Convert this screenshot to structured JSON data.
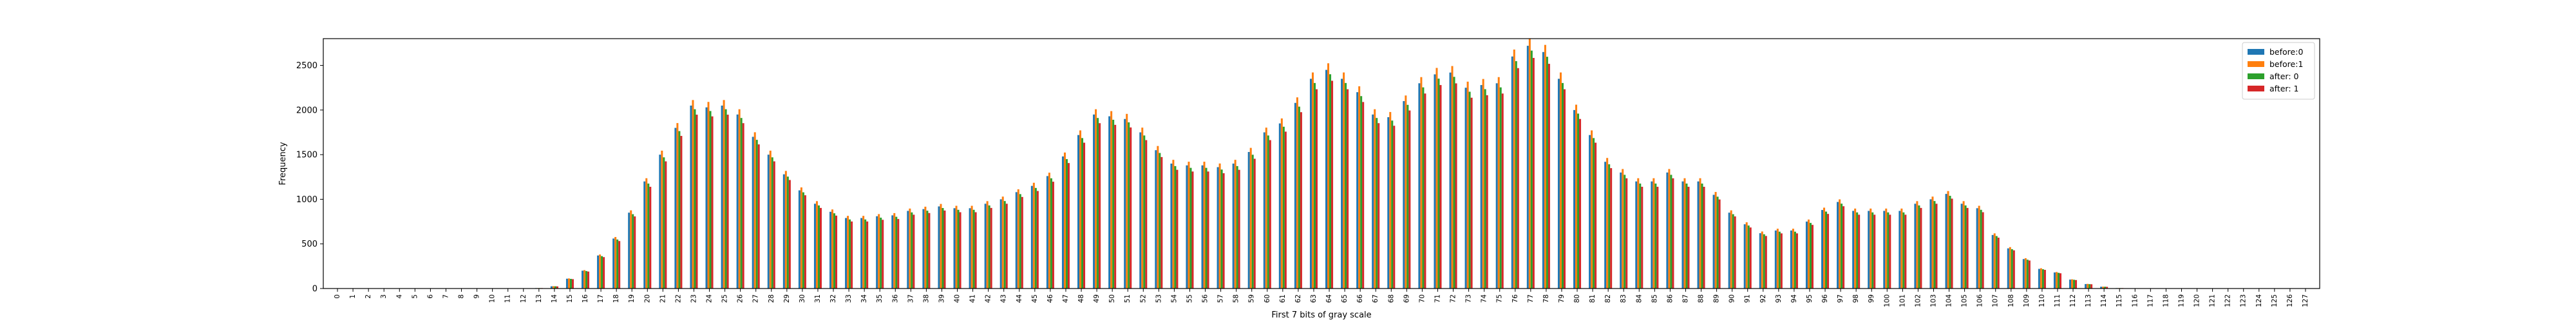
{
  "chart_data": {
    "type": "bar",
    "title": "",
    "xlabel": "First 7 bits of gray scale",
    "ylabel": "Frequency",
    "ylim": [
      0,
      2800
    ],
    "yticks": [
      0,
      500,
      1000,
      1500,
      2000,
      2500
    ],
    "grid": false,
    "legend_position": "top-right",
    "categories": [
      "0",
      "1",
      "2",
      "3",
      "4",
      "5",
      "6",
      "7",
      "8",
      "9",
      "10",
      "11",
      "12",
      "13",
      "14",
      "15",
      "16",
      "17",
      "18",
      "19",
      "20",
      "21",
      "22",
      "23",
      "24",
      "25",
      "26",
      "27",
      "28",
      "29",
      "30",
      "31",
      "32",
      "33",
      "34",
      "35",
      "36",
      "37",
      "38",
      "39",
      "40",
      "41",
      "42",
      "43",
      "44",
      "45",
      "46",
      "47",
      "48",
      "49",
      "50",
      "51",
      "52",
      "53",
      "54",
      "55",
      "56",
      "57",
      "58",
      "59",
      "60",
      "61",
      "62",
      "63",
      "64",
      "65",
      "66",
      "67",
      "68",
      "69",
      "70",
      "71",
      "72",
      "73",
      "74",
      "75",
      "76",
      "77",
      "78",
      "79",
      "80",
      "81",
      "82",
      "83",
      "84",
      "85",
      "86",
      "87",
      "88",
      "89",
      "90",
      "91",
      "92",
      "93",
      "94",
      "95",
      "96",
      "97",
      "98",
      "99",
      "100",
      "101",
      "102",
      "103",
      "104",
      "105",
      "106",
      "107",
      "108",
      "109",
      "110",
      "111",
      "112",
      "113",
      "114",
      "115",
      "116",
      "117",
      "118",
      "119",
      "120",
      "121",
      "122",
      "123",
      "124",
      "125",
      "126",
      "127"
    ],
    "base_values": [
      0,
      0,
      0,
      0,
      0,
      0,
      0,
      0,
      0,
      0,
      0,
      0,
      0,
      5,
      25,
      110,
      200,
      370,
      560,
      850,
      1200,
      1500,
      1800,
      2050,
      2030,
      2050,
      1950,
      1700,
      1500,
      1280,
      1100,
      950,
      860,
      790,
      790,
      810,
      820,
      870,
      890,
      920,
      900,
      900,
      950,
      1000,
      1080,
      1150,
      1260,
      1480,
      1720,
      1950,
      1930,
      1900,
      1750,
      1550,
      1400,
      1380,
      1380,
      1360,
      1400,
      1530,
      1750,
      1850,
      2080,
      2350,
      2450,
      2350,
      2200,
      1950,
      1920,
      2100,
      2300,
      2400,
      2420,
      2250,
      2280,
      2300,
      2600,
      2720,
      2650,
      2350,
      2000,
      1720,
      1420,
      1300,
      1200,
      1200,
      1300,
      1200,
      1200,
      1050,
      850,
      720,
      620,
      650,
      650,
      750,
      880,
      970,
      870,
      870,
      870,
      870,
      950,
      1000,
      1060,
      950,
      900,
      600,
      450,
      330,
      220,
      180,
      100,
      50,
      20,
      5,
      0,
      0,
      0,
      0,
      0,
      0,
      0,
      0,
      0,
      0,
      0,
      0
    ],
    "series": [
      {
        "name": "before:0",
        "color": "#1f77b4",
        "factor": 1.0
      },
      {
        "name": "before:1",
        "color": "#ff7f0e",
        "factor": 1.03
      },
      {
        "name": "after: 0",
        "color": "#2ca02c",
        "factor": 0.98
      },
      {
        "name": "after: 1",
        "color": "#d62728",
        "factor": 0.95
      }
    ]
  }
}
